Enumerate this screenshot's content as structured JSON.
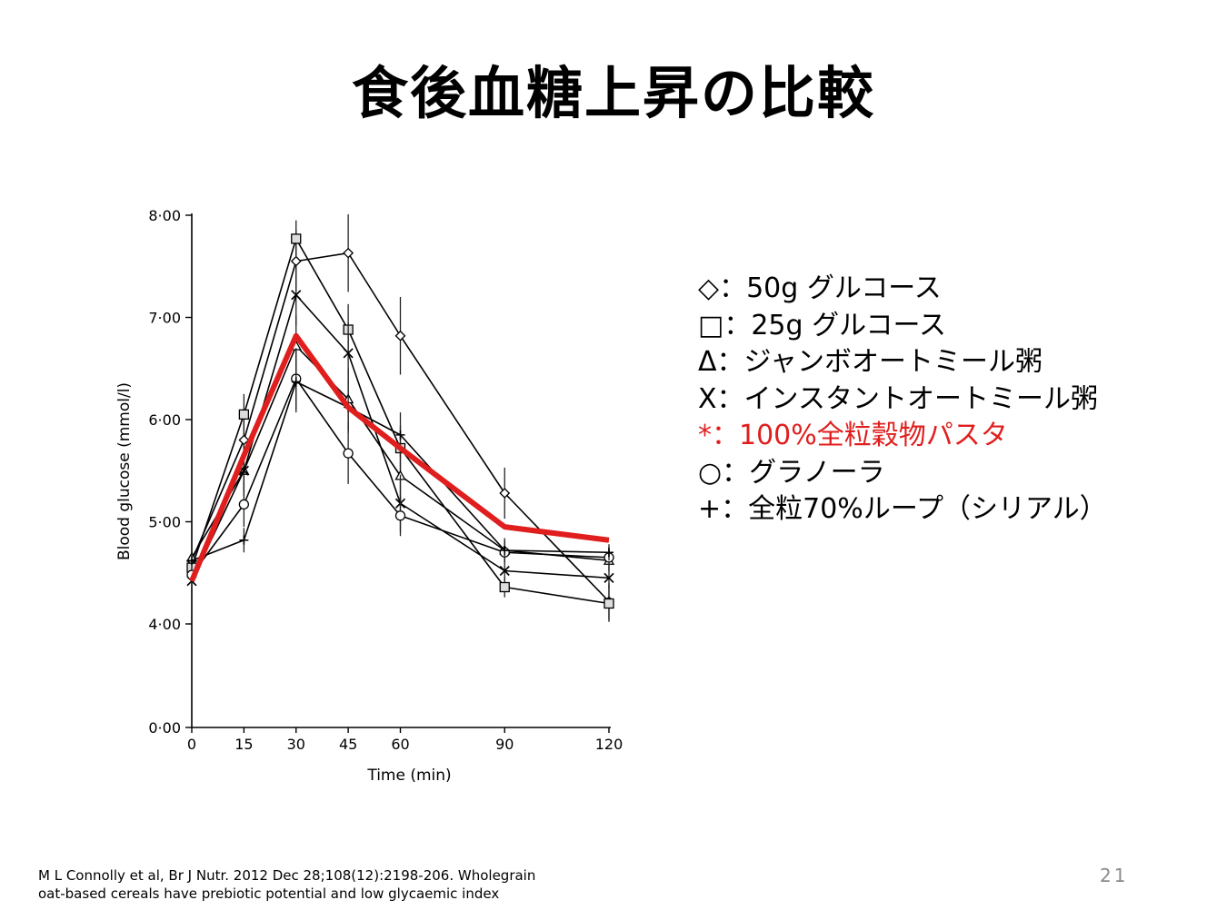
{
  "slide": {
    "title": "食後血糖上昇の比較",
    "page_number": "21",
    "citation": [
      "M L Connolly et al, Br J Nutr. 2012 Dec 28;108(12):2198-206. Wholegrain",
      "oat-based cereals have prebiotic potential and low glycaemic index"
    ]
  },
  "legend": {
    "items": [
      {
        "text": "◇：50g グルコース",
        "color": "#000000"
      },
      {
        "text": "□：25g グルコース",
        "color": "#000000"
      },
      {
        "text": "Δ：ジャンボオートミール粥",
        "color": "#000000"
      },
      {
        "text": "X：インスタントオートミール粥",
        "color": "#000000"
      },
      {
        "text": "*：100%全粒穀物パスタ",
        "color": "#e01e1e"
      },
      {
        "text": "○：グラノーラ",
        "color": "#000000"
      },
      {
        "text": "+：全粒70%ループ（シリアル）",
        "color": "#000000"
      }
    ]
  },
  "chart_data": {
    "type": "line",
    "xlabel": "Time (min)",
    "ylabel": "Blood glucose (mmol/l)",
    "x": [
      0,
      15,
      30,
      45,
      60,
      90,
      120
    ],
    "xticks": [
      "0",
      "15",
      "30",
      "45",
      "60",
      "90",
      "120"
    ],
    "yticks": [
      "0·00",
      "4·00",
      "5·00",
      "6·00",
      "7·00",
      "8·00"
    ],
    "ylim": [
      0,
      8
    ],
    "axis_break": true,
    "grid": false,
    "series": [
      {
        "marker": "diamond",
        "color": "#000000",
        "values": [
          4.62,
          5.8,
          7.55,
          7.63,
          6.82,
          5.28,
          4.22
        ],
        "err": [
          0.1,
          0.25,
          0.3,
          0.38,
          0.38,
          0.25,
          0.18
        ]
      },
      {
        "marker": "square",
        "color": "#000000",
        "values": [
          4.55,
          6.05,
          7.77,
          6.88,
          5.72,
          4.36,
          4.2
        ],
        "err": [
          0.1,
          0.2,
          0.18,
          0.25,
          0.22,
          0.1,
          0.18
        ]
      },
      {
        "marker": "triangle",
        "color": "#000000",
        "values": [
          4.65,
          5.5,
          6.72,
          6.2,
          5.45,
          4.72,
          4.62
        ],
        "err": [
          0.08,
          0.2,
          0.3,
          0.3,
          0.3,
          0.12,
          0.1
        ]
      },
      {
        "marker": "x",
        "color": "#000000",
        "values": [
          4.42,
          5.5,
          7.22,
          6.65,
          5.18,
          4.52,
          4.45
        ],
        "err": [
          0.08,
          0.25,
          0.3,
          0.3,
          0.28,
          0.1,
          0.1
        ]
      },
      {
        "marker": "none",
        "color": "#e01e1e",
        "highlight": true,
        "values": [
          4.42,
          5.65,
          6.82,
          6.12,
          5.72,
          4.95,
          4.82
        ],
        "err": [
          0,
          0,
          0,
          0,
          0,
          0,
          0
        ]
      },
      {
        "marker": "circle",
        "color": "#000000",
        "values": [
          4.48,
          5.17,
          6.4,
          5.67,
          5.06,
          4.7,
          4.65
        ],
        "err": [
          0.08,
          0.22,
          0.3,
          0.3,
          0.2,
          0.1,
          0.1
        ]
      },
      {
        "marker": "plus",
        "color": "#000000",
        "values": [
          4.62,
          4.82,
          6.37,
          6.12,
          5.85,
          4.72,
          4.7
        ],
        "err": [
          0.08,
          0.12,
          0.3,
          0.25,
          0.22,
          0.1,
          0.08
        ]
      }
    ]
  }
}
